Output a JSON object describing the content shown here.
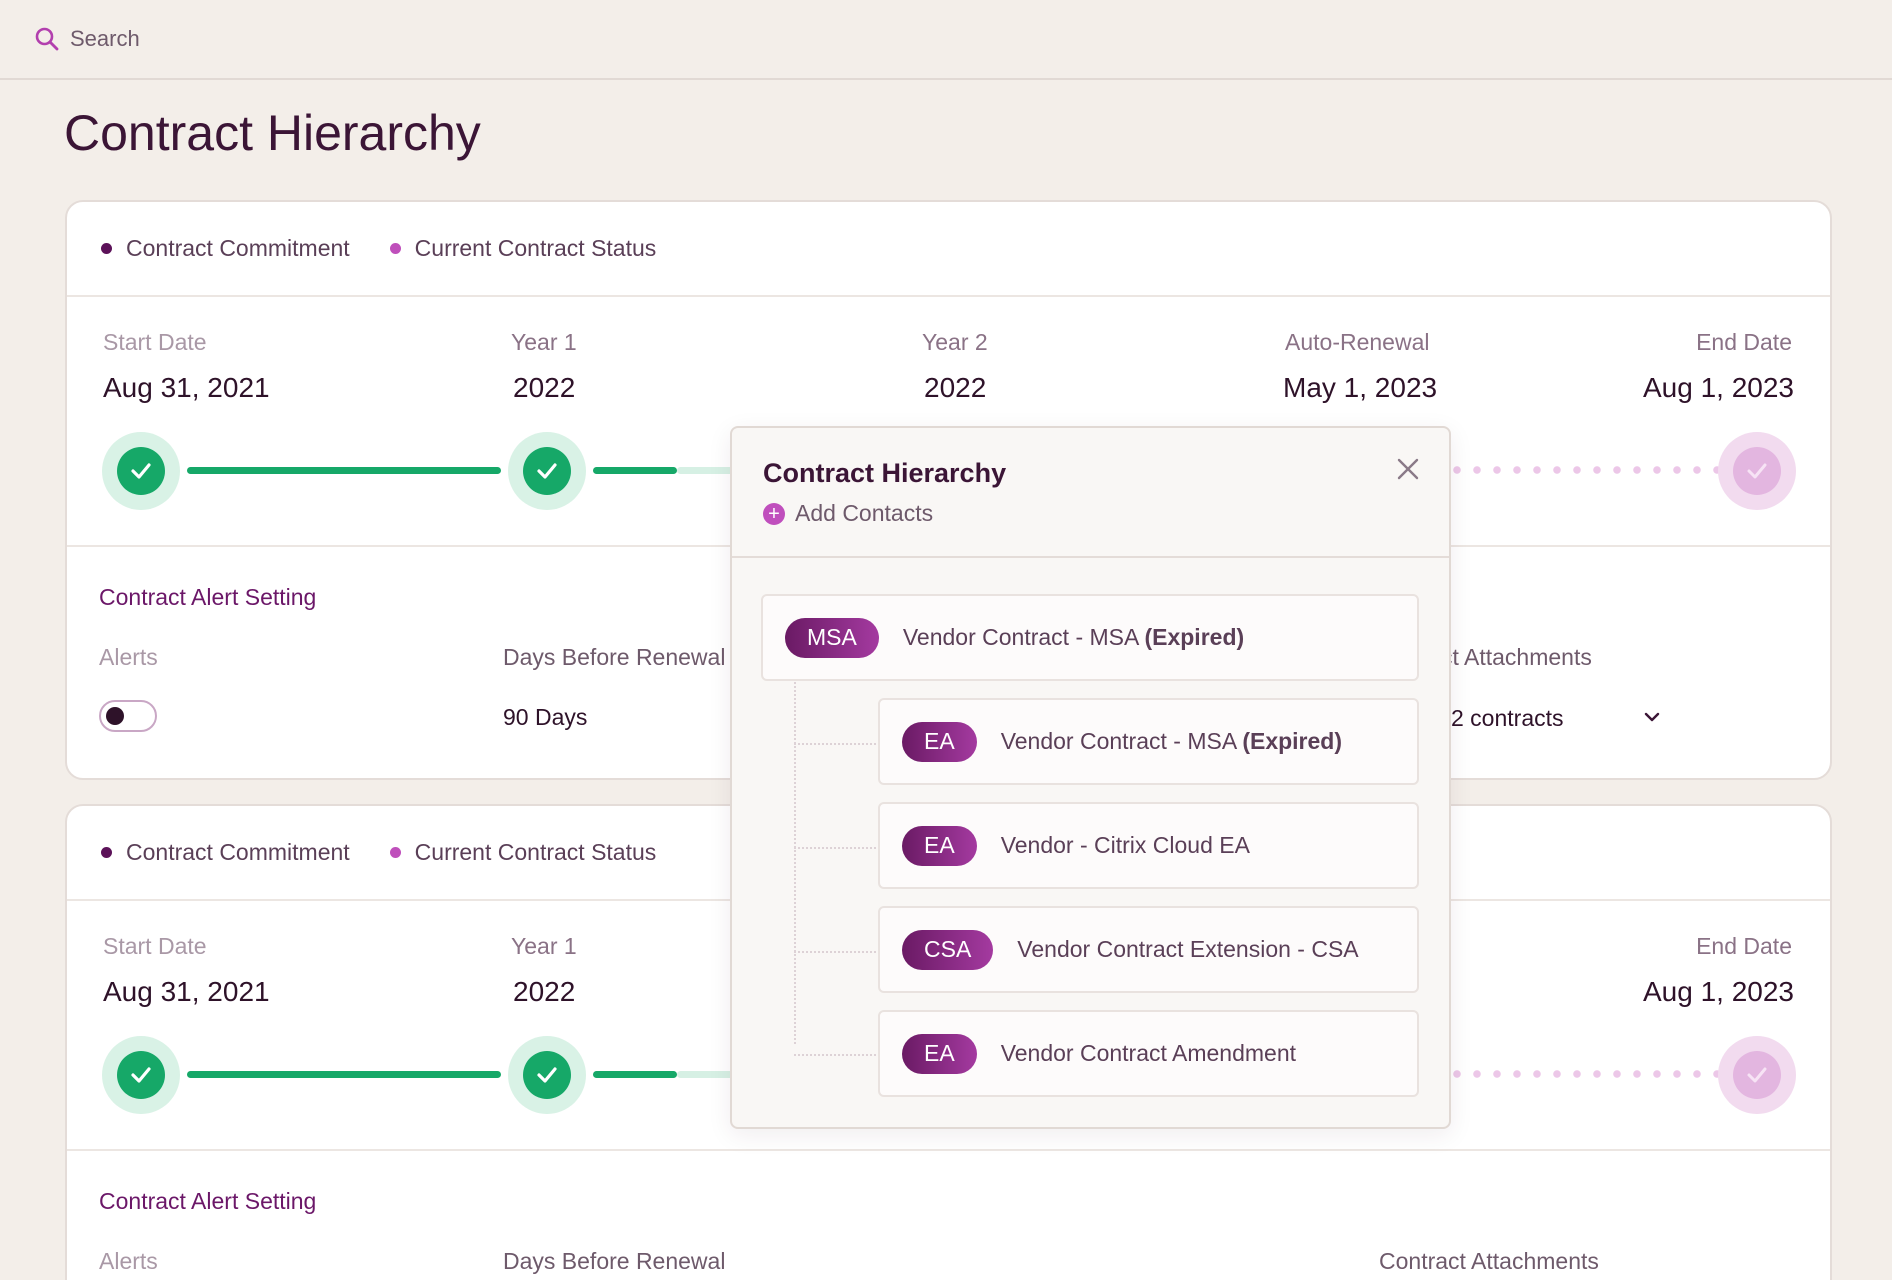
{
  "search": {
    "placeholder": "Search"
  },
  "page": {
    "title": "Contract Hierarchy"
  },
  "legend": {
    "commitment": "Contract Commitment",
    "status": "Current Contract Status"
  },
  "colors": {
    "accent": "#6b1768",
    "commitment_dot": "#5c1259",
    "status_dot": "#bf4fbb",
    "complete": "#16a868",
    "pending": "#e3b6e0"
  },
  "cards": [
    {
      "timeline": {
        "start_label": "Start Date",
        "start_date": "Aug 31, 2021",
        "year1_label": "Year 1",
        "year1_value": "2022",
        "year2_label": "Year 2",
        "year2_value": "2022",
        "renewal_label": "Auto-Renewal",
        "renewal_date": "May 1, 2023",
        "end_label": "End Date",
        "end_date": "Aug 1, 2023"
      },
      "alerts": {
        "section_title": "Contract Alert Setting",
        "alerts_label": "Alerts",
        "alerts_enabled": false,
        "days_label": "Days Before Renewal",
        "days_value": "90 Days",
        "attachments_label": "ct Attachments",
        "attachments_value": "2 contracts"
      }
    },
    {
      "timeline": {
        "start_label": "Start Date",
        "start_date": "Aug 31, 2021",
        "year1_label": "Year 1",
        "year1_value": "2022",
        "end_label": "End Date",
        "end_date": "Aug 1, 2023"
      },
      "alerts": {
        "section_title": "Contract Alert Setting",
        "alerts_label": "Alerts",
        "days_label": "Days Before Renewal",
        "attachments_label": "Contract Attachments"
      }
    }
  ],
  "modal": {
    "title": "Contract Hierarchy",
    "add_contacts": "Add Contacts",
    "items": [
      {
        "tag": "MSA",
        "name": "Vendor Contract - MSA",
        "status": "(Expired)"
      },
      {
        "tag": "EA",
        "name": "Vendor Contract - MSA",
        "status": "(Expired)"
      },
      {
        "tag": "EA",
        "name": "Vendor - Citrix Cloud EA",
        "status": ""
      },
      {
        "tag": "CSA",
        "name": "Vendor Contract Extension - CSA",
        "status": ""
      },
      {
        "tag": "EA",
        "name": "Vendor Contract Amendment",
        "status": ""
      }
    ]
  }
}
